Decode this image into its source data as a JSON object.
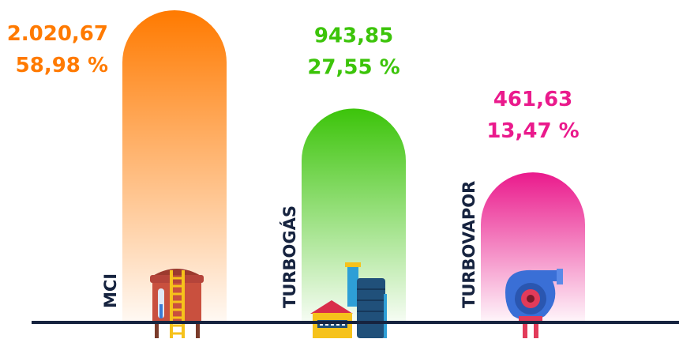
{
  "chart_data": {
    "type": "bar",
    "categories": [
      "MCI",
      "TURBOGÁS",
      "TURBOVAPOR"
    ],
    "values": [
      2020.67,
      943.85,
      461.63
    ],
    "value_labels": [
      "2.020,67",
      "943,85",
      "461,63"
    ],
    "shares": [
      58.98,
      27.55,
      13.47
    ],
    "share_labels": [
      "58,98 %",
      "27,55 %",
      "13,47 %"
    ],
    "colors": [
      "#ff7a00",
      "#3cc40a",
      "#ea1a8c"
    ]
  }
}
